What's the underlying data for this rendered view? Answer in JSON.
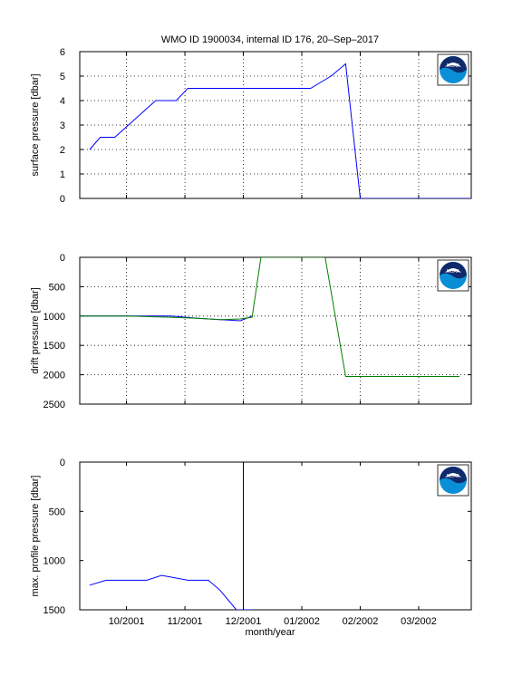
{
  "figure": {
    "title": "WMO ID 1900034, internal ID 176, 20–Sep–2017",
    "xlabel": "month/year",
    "x_tick_labels": [
      "10/2001",
      "11/2001",
      "12/2001",
      "01/2002",
      "02/2002",
      "03/2002"
    ],
    "logo_text": "NOAA"
  },
  "chart_data": [
    {
      "type": "line",
      "id": "surface",
      "ylabel": "surface pressure [dbar]",
      "x_unit": "months since 2001-09-01",
      "xlim": [
        0.2,
        6.9
      ],
      "ylim": [
        0,
        6
      ],
      "y_reversed": false,
      "y_ticks": [
        0,
        1,
        2,
        3,
        4,
        5,
        6
      ],
      "grid": true,
      "series": [
        {
          "color": "#0000ff",
          "x": [
            0.37,
            0.55,
            0.8,
            1.5,
            1.85,
            2.05,
            2.85,
            3.15,
            4.15,
            4.5,
            4.75,
            5.0,
            6.9
          ],
          "y": [
            2.0,
            2.5,
            2.5,
            4.0,
            4.0,
            4.5,
            4.5,
            4.5,
            4.5,
            5.0,
            5.5,
            0.0,
            0.0
          ]
        }
      ]
    },
    {
      "type": "line",
      "id": "drift",
      "ylabel": "drift pressure [dbar]",
      "x_unit": "months since 2001-09-01",
      "xlim": [
        0.2,
        6.9
      ],
      "ylim": [
        0,
        2500
      ],
      "y_reversed": true,
      "y_ticks": [
        0,
        500,
        1000,
        1500,
        2000,
        2500
      ],
      "grid": true,
      "series": [
        {
          "color": "#0000ff",
          "x": [
            0.2,
            1.0,
            1.75,
            2.25,
            2.6,
            2.95,
            3.15
          ],
          "y": [
            1000,
            1000,
            1000,
            1040,
            1060,
            1080,
            1000
          ]
        },
        {
          "color": "#008000",
          "x": [
            0.2,
            1.0,
            1.75,
            2.25,
            2.6,
            2.95,
            3.15,
            3.3,
            4.4,
            4.75,
            6.7
          ],
          "y": [
            1000,
            1000,
            1020,
            1040,
            1060,
            1050,
            1020,
            0,
            0,
            2030,
            2030
          ]
        }
      ]
    },
    {
      "type": "line",
      "id": "maxprofile",
      "ylabel": "max. profile pressure [dbar]",
      "x_unit": "months since 2001-09-01",
      "xlim": [
        0.2,
        6.9
      ],
      "ylim": [
        0,
        1500
      ],
      "y_reversed": true,
      "y_ticks": [
        0,
        500,
        1000,
        1500
      ],
      "grid": false,
      "vertical_line_x": 3.0,
      "series": [
        {
          "color": "#0000ff",
          "x": [
            0.37,
            0.65,
            1.0,
            1.35,
            1.6,
            2.05,
            2.4,
            2.6,
            2.88,
            3.15
          ],
          "y": [
            1250,
            1200,
            1200,
            1200,
            1150,
            1200,
            1200,
            1300,
            1500,
            1500
          ]
        }
      ]
    }
  ]
}
